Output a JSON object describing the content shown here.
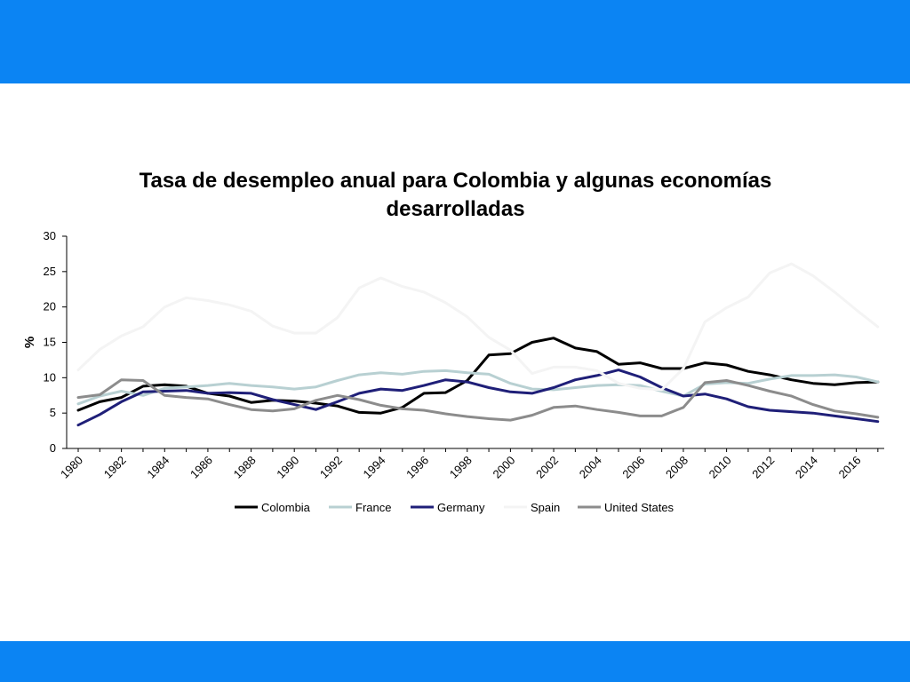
{
  "slide": {
    "top_band_color": "#0b84f3",
    "bottom_band_color": "#0b84f3"
  },
  "chart_data": {
    "type": "line",
    "title_line1": "Tasa de desempleo anual para Colombia y algunas economías",
    "title_line2": "desarrolladas",
    "ylabel": "%",
    "xlabel": "",
    "ylim": [
      0,
      30
    ],
    "yticks": [
      0,
      5,
      10,
      15,
      20,
      25,
      30
    ],
    "xticks": [
      "1980",
      "1982",
      "1984",
      "1986",
      "1988",
      "1990",
      "1992",
      "1994",
      "1996",
      "1998",
      "2000",
      "2002",
      "2004",
      "2006",
      "2008",
      "2010",
      "2012",
      "2014",
      "2016"
    ],
    "grid": false,
    "legend_position": "bottom",
    "x": [
      1980,
      1981,
      1982,
      1983,
      1984,
      1985,
      1986,
      1987,
      1988,
      1989,
      1990,
      1991,
      1992,
      1993,
      1994,
      1995,
      1996,
      1997,
      1998,
      1999,
      2000,
      2001,
      2002,
      2003,
      2004,
      2005,
      2006,
      2007,
      2008,
      2009,
      2010,
      2011,
      2012,
      2013,
      2014,
      2015,
      2016,
      2017
    ],
    "series": [
      {
        "name": "Colombia",
        "color": "#000000",
        "values": [
          5.4,
          6.6,
          7.2,
          8.8,
          9.0,
          8.8,
          7.8,
          7.4,
          6.5,
          6.8,
          6.7,
          6.4,
          6.0,
          5.1,
          5.0,
          5.8,
          7.8,
          7.9,
          9.6,
          13.2,
          13.4,
          15.0,
          15.6,
          14.2,
          13.7,
          11.9,
          12.1,
          11.3,
          11.3,
          12.1,
          11.8,
          10.9,
          10.4,
          9.7,
          9.2,
          9.0,
          9.3,
          9.4
        ]
      },
      {
        "name": "France",
        "color": "#b8d0d2",
        "values": [
          6.3,
          7.4,
          8.1,
          7.5,
          8.5,
          8.7,
          8.9,
          9.2,
          8.9,
          8.7,
          8.4,
          8.7,
          9.6,
          10.4,
          10.7,
          10.5,
          10.9,
          11.0,
          10.7,
          10.5,
          9.2,
          8.4,
          8.3,
          8.6,
          8.9,
          9.0,
          8.9,
          8.1,
          7.4,
          9.1,
          9.3,
          9.2,
          9.8,
          10.3,
          10.3,
          10.4,
          10.1,
          9.4
        ]
      },
      {
        "name": "Germany",
        "color": "#1f1f78",
        "values": [
          3.3,
          4.8,
          6.6,
          8.0,
          8.1,
          8.2,
          7.8,
          7.9,
          7.8,
          6.9,
          6.2,
          5.5,
          6.6,
          7.8,
          8.4,
          8.2,
          8.9,
          9.7,
          9.4,
          8.6,
          8.0,
          7.8,
          8.6,
          9.7,
          10.3,
          11.1,
          10.1,
          8.6,
          7.4,
          7.7,
          7.0,
          5.9,
          5.4,
          5.2,
          5.0,
          4.6,
          4.2,
          3.8
        ]
      },
      {
        "name": "Spain",
        "color": "#f4f4f4",
        "values": [
          11.1,
          14.0,
          15.9,
          17.2,
          20.0,
          21.3,
          20.9,
          20.3,
          19.4,
          17.3,
          16.3,
          16.3,
          18.5,
          22.7,
          24.1,
          22.9,
          22.1,
          20.6,
          18.6,
          15.7,
          13.9,
          10.6,
          11.5,
          11.5,
          11.0,
          9.2,
          8.5,
          8.3,
          11.3,
          17.9,
          19.9,
          21.4,
          24.8,
          26.1,
          24.4,
          22.1,
          19.6,
          17.2
        ]
      },
      {
        "name": "United States",
        "color": "#8c8c8c",
        "values": [
          7.2,
          7.6,
          9.7,
          9.6,
          7.5,
          7.2,
          7.0,
          6.2,
          5.5,
          5.3,
          5.6,
          6.8,
          7.5,
          6.9,
          6.1,
          5.6,
          5.4,
          4.9,
          4.5,
          4.2,
          4.0,
          4.7,
          5.8,
          6.0,
          5.5,
          5.1,
          4.6,
          4.6,
          5.8,
          9.3,
          9.6,
          8.9,
          8.1,
          7.4,
          6.2,
          5.3,
          4.9,
          4.4
        ]
      }
    ]
  }
}
